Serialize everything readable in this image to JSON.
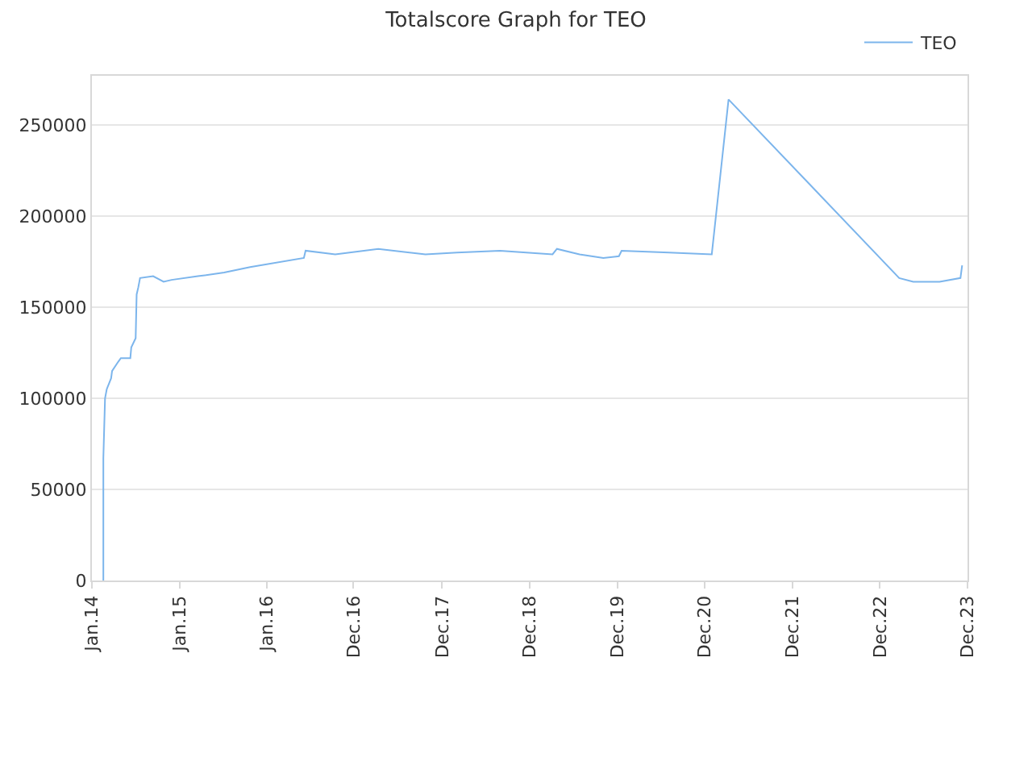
{
  "chart_data": {
    "type": "line",
    "title": "Totalscore Graph for TEO",
    "x": [
      "2014-03-08",
      "2014-03-08",
      "2014-03-15",
      "2014-03-22",
      "2014-04-09",
      "2014-04-13",
      "2014-05-08",
      "2014-05-19",
      "2014-06-27",
      "2014-07-01",
      "2014-07-19",
      "2014-07-23",
      "2014-07-30",
      "2014-08-06",
      "2014-09-29",
      "2014-11-11",
      "2014-12-14",
      "2015-04-01",
      "2015-07-18",
      "2015-11-02",
      "2016-06-10",
      "2016-06-17",
      "2016-10-17",
      "2017-04-12",
      "2017-10-23",
      "2018-03-02",
      "2018-08-26",
      "2018-12-12",
      "2019-03-30",
      "2019-04-17",
      "2019-07-19",
      "2019-10-25",
      "2019-12-28",
      "2020-01-08",
      "2020-07-21",
      "2021-01-13",
      "2021-03-23",
      "2023-02-23",
      "2023-04-22",
      "2023-08-08",
      "2023-11-02",
      "2023-11-09"
    ],
    "series": [
      {
        "name": "TEO",
        "color": "#7cb5ec",
        "values": [
          0,
          67000,
          100000,
          105000,
          111000,
          115000,
          120000,
          122000,
          122000,
          128000,
          133000,
          157000,
          161000,
          166000,
          167000,
          164000,
          165000,
          167000,
          169000,
          172000,
          177000,
          181000,
          179000,
          182000,
          179000,
          180000,
          181000,
          180000,
          179000,
          182000,
          179000,
          177000,
          178000,
          181000,
          180000,
          179000,
          264000,
          166000,
          164000,
          164000,
          166000,
          173000
        ]
      }
    ],
    "xlim": [
      "2014-01-20",
      "2023-12-01"
    ],
    "xticks": [
      {
        "value": "2014-01-20",
        "label": "Jan.14"
      },
      {
        "value": "2015-01-15",
        "label": "Jan.15"
      },
      {
        "value": "2016-01-10",
        "label": "Jan.16"
      },
      {
        "value": "2016-12-31",
        "label": "Dec.16"
      },
      {
        "value": "2017-12-31",
        "label": "Dec.17"
      },
      {
        "value": "2018-12-26",
        "label": "Dec.18"
      },
      {
        "value": "2019-12-21",
        "label": "Dec.19"
      },
      {
        "value": "2020-12-15",
        "label": "Dec.20"
      },
      {
        "value": "2021-12-11",
        "label": "Dec.21"
      },
      {
        "value": "2022-12-06",
        "label": "Dec.22"
      },
      {
        "value": "2023-12-01",
        "label": "Dec.23"
      }
    ],
    "ylim": [
      0,
      277000
    ],
    "yticks": [
      0,
      50000,
      100000,
      150000,
      200000,
      250000
    ],
    "grid": "y",
    "legend": "top right",
    "marker": "none",
    "line_style": "solid"
  }
}
